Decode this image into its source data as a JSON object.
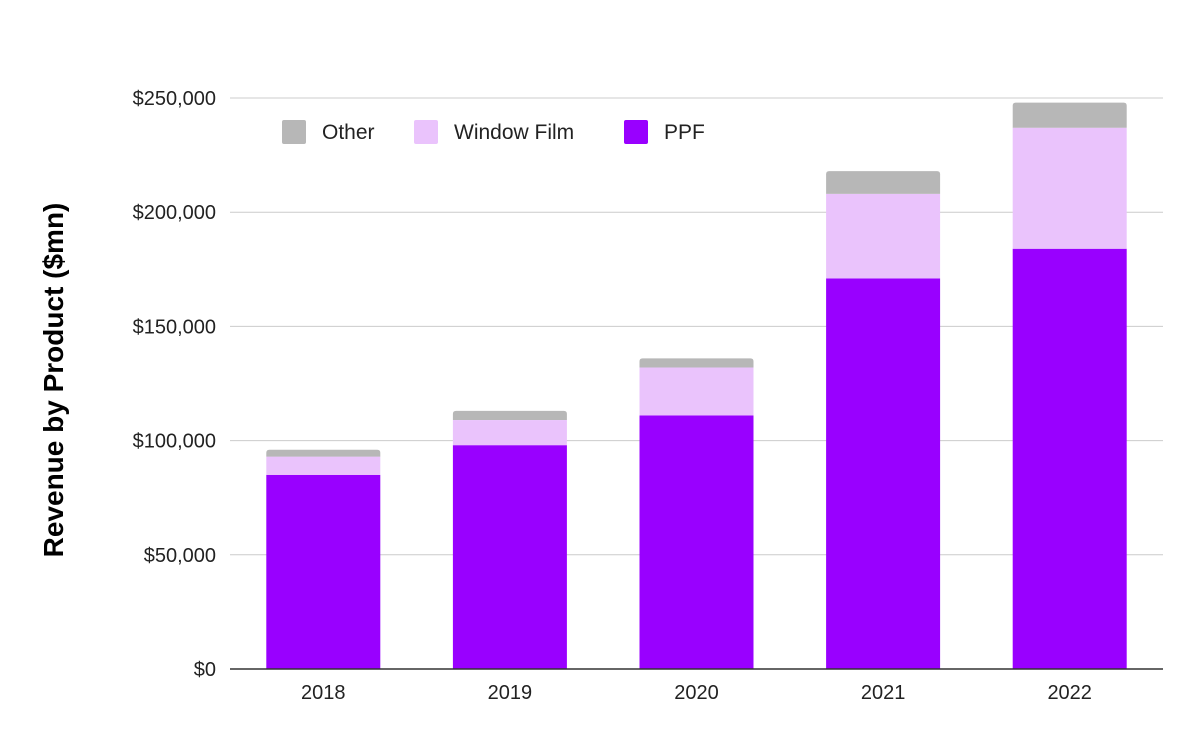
{
  "chart_data": {
    "type": "bar",
    "stacked": true,
    "title": "",
    "xlabel": "",
    "ylabel": "Revenue by Product ($mn)",
    "categories": [
      "2018",
      "2019",
      "2020",
      "2021",
      "2022"
    ],
    "series": [
      {
        "name": "PPF",
        "values": [
          85000,
          98000,
          111000,
          171000,
          184000
        ],
        "color": "#9900ff"
      },
      {
        "name": "Window Film",
        "values": [
          8000,
          11000,
          21000,
          37000,
          53000
        ],
        "color": "#eac3fc"
      },
      {
        "name": "Other",
        "values": [
          3000,
          4000,
          4000,
          10000,
          11000
        ],
        "color": "#b7b7b7"
      }
    ],
    "ylim": [
      0,
      250000
    ],
    "yticks": [
      {
        "value": 0,
        "label": "$0"
      },
      {
        "value": 50000,
        "label": "$50,000"
      },
      {
        "value": 100000,
        "label": "$100,000"
      },
      {
        "value": 150000,
        "label": "$150,000"
      },
      {
        "value": 200000,
        "label": "$200,000"
      },
      {
        "value": 250000,
        "label": "$250,000"
      }
    ],
    "grid": true,
    "legend": {
      "placement": "top-left",
      "entries": [
        {
          "name": "Other",
          "color": "#b7b7b7"
        },
        {
          "name": "Window Film",
          "color": "#eac3fc"
        },
        {
          "name": "PPF",
          "color": "#9900ff"
        }
      ]
    }
  }
}
